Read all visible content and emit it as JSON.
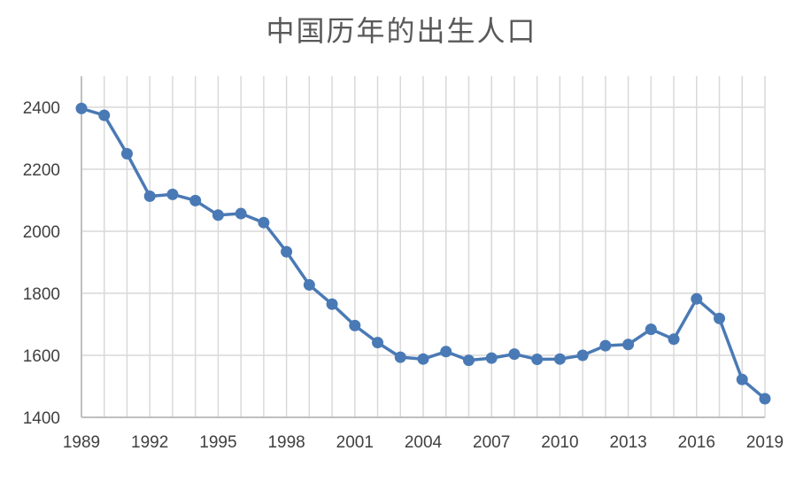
{
  "chart_data": {
    "type": "line",
    "title": "中国历年的出生人口",
    "xlabel": "",
    "ylabel": "",
    "x": [
      1989,
      1990,
      1991,
      1992,
      1993,
      1994,
      1995,
      1996,
      1997,
      1998,
      1999,
      2000,
      2001,
      2002,
      2003,
      2004,
      2005,
      2006,
      2007,
      2008,
      2009,
      2010,
      2011,
      2012,
      2013,
      2014,
      2015,
      2016,
      2017,
      2018,
      2019
    ],
    "series": [
      {
        "values": [
          2396,
          2374,
          2250,
          2113,
          2119,
          2099,
          2052,
          2057,
          2028,
          1934,
          1827,
          1765,
          1696,
          1641,
          1594,
          1588,
          1612,
          1584,
          1591,
          1604,
          1587,
          1588,
          1600,
          1631,
          1635,
          1684,
          1652,
          1782,
          1719,
          1522,
          1460
        ]
      }
    ],
    "x_ticks": [
      "1989",
      "1992",
      "1995",
      "1998",
      "2001",
      "2004",
      "2007",
      "2010",
      "2013",
      "2016",
      "2019"
    ],
    "y_ticks": [
      "1400",
      "1600",
      "1800",
      "2000",
      "2200",
      "2400"
    ],
    "xlim": [
      1989,
      2019
    ],
    "ylim": [
      1400,
      2500
    ],
    "grid": true,
    "legend": "none",
    "colors": {
      "line": "#4a7ab5",
      "marker": "#4a7ab5",
      "grid": "#d9d9d9",
      "axis": "#bfbfbf"
    }
  }
}
